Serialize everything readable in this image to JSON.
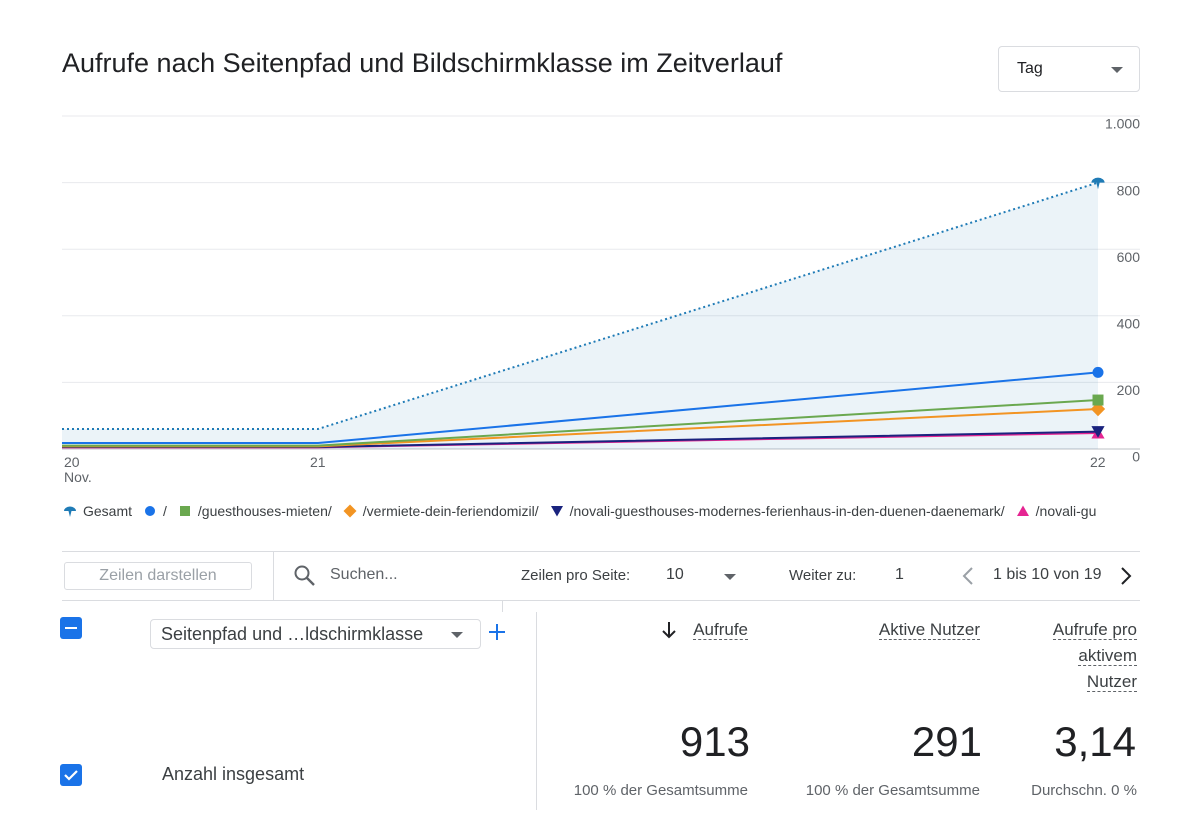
{
  "title": "Aufrufe nach Seitenpfad und Bildschirmklasse im Zeitverlauf",
  "dropdown": "Tag",
  "chart_data": {
    "type": "line",
    "categories": [
      "20\nNov.",
      "21",
      "22"
    ],
    "ylim": [
      0,
      1000
    ],
    "yticks": [
      0,
      200,
      400,
      600,
      800,
      {
        "value": 1000,
        "label": "1.000"
      }
    ],
    "grid": true,
    "series": [
      {
        "name": "Gesamt",
        "color": "#1f7bb6",
        "values": [
          60,
          60,
          800
        ],
        "dashed": true,
        "area": true,
        "marker": "drop"
      },
      {
        "name": "/",
        "color": "#1a73e8",
        "values": [
          18,
          18,
          230
        ],
        "marker": "circle"
      },
      {
        "name": "/guesthouses-mieten/",
        "color": "#6aa84f",
        "values": [
          10,
          10,
          147
        ],
        "marker": "square"
      },
      {
        "name": "/vermiete-dein-feriendomizil/",
        "color": "#f29423",
        "values": [
          8,
          8,
          120
        ],
        "marker": "diamond"
      },
      {
        "name": "/novali-guesthouses-modernes-ferienhaus-in-den-duenen-daenemark/",
        "color": "#1a237e",
        "values": [
          6,
          6,
          52
        ],
        "marker": "triangle-down"
      },
      {
        "name": "/novali-gu",
        "color": "#e52592",
        "values": [
          5,
          5,
          48
        ],
        "marker": "triangle-up"
      }
    ]
  },
  "controls": {
    "rows_button": "Zeilen darstellen",
    "search": "Suchen...",
    "rows_per_page_label": "Zeilen pro Seite:",
    "rows_per_page": "10",
    "goto_label": "Weiter zu:",
    "goto_value": "1",
    "pagination": "1 bis 10 von 19"
  },
  "table": {
    "dimension": "Seitenpfad und …ldschirmklasse",
    "total_label": "Anzahl insgesamt",
    "metrics": [
      {
        "name": "Aufrufe",
        "value": 913,
        "sub": "100 % der Gesamtsumme"
      },
      {
        "name": "Aktive Nutzer",
        "value": 291,
        "sub": "100 % der Gesamtsumme"
      },
      {
        "name": "Aufrufe pro aktivem Nutzer",
        "value": "3,14",
        "sub": "Durchschn. 0 %"
      }
    ]
  }
}
